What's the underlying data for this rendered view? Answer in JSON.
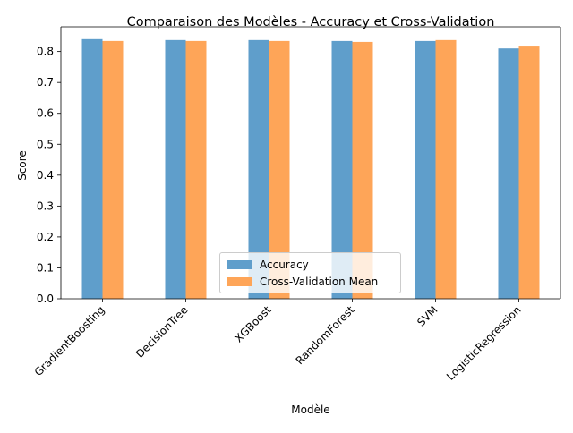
{
  "chart_data": {
    "type": "bar",
    "title": "Comparaison des Modèles - Accuracy et Cross-Validation",
    "xlabel": "Modèle",
    "ylabel": "Score",
    "ylim": [
      0,
      0.88
    ],
    "yticks": [
      "0.0",
      "0.1",
      "0.2",
      "0.3",
      "0.4",
      "0.5",
      "0.6",
      "0.7",
      "0.8"
    ],
    "categories": [
      "GradientBoosting",
      "DecisionTree",
      "XGBoost",
      "RandomForest",
      "SVM",
      "LogisticRegression"
    ],
    "series": [
      {
        "name": "Accuracy",
        "color": "#5f9ecb",
        "values": [
          0.84,
          0.837,
          0.837,
          0.834,
          0.834,
          0.81
        ]
      },
      {
        "name": "Cross-Validation Mean",
        "color": "#fea558",
        "values": [
          0.834,
          0.834,
          0.834,
          0.831,
          0.837,
          0.819
        ]
      }
    ],
    "grid": false,
    "legend_position": "lower center"
  }
}
